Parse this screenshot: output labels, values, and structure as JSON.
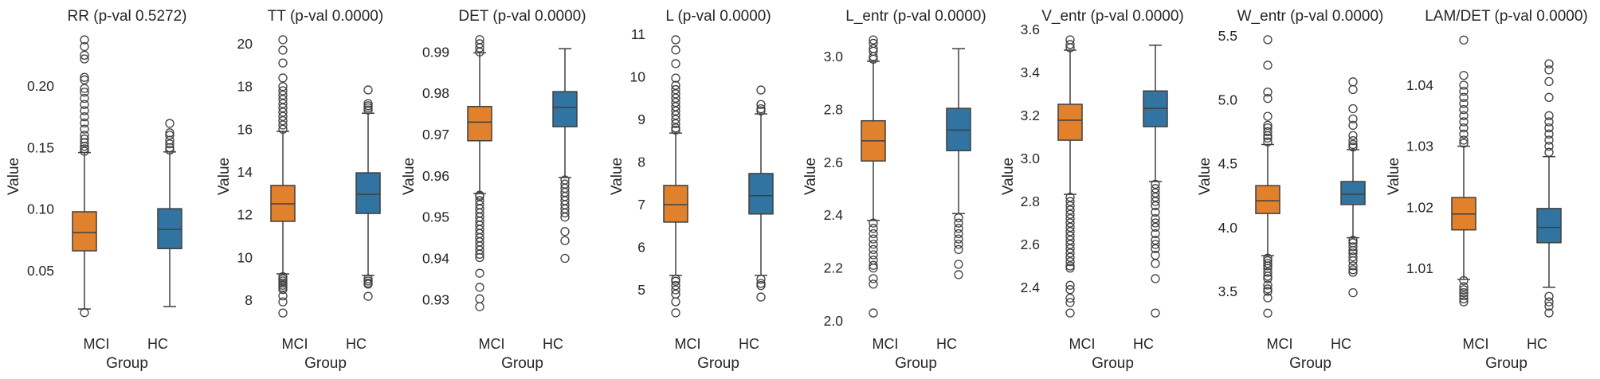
{
  "chart_data": [
    {
      "type": "box",
      "title": "RR (p-val 0.5272)",
      "xlabel": "Group",
      "ylabel": "Value",
      "categories": [
        "MCI",
        "HC"
      ],
      "ylim": [
        0.0048,
        0.2485
      ],
      "yticks": [
        0.05,
        0.1,
        0.15,
        0.2
      ],
      "ytick_labels": [
        "0.05",
        "0.10",
        "0.15",
        "0.20"
      ],
      "boxes": [
        {
          "group": "MCI",
          "whisker_low": 0.019,
          "q1": 0.0662,
          "median": 0.081,
          "q3": 0.0979,
          "whisker_high": 0.146,
          "outliers": [
            0.2375,
            0.232,
            0.225,
            0.222,
            0.207,
            0.205,
            0.198,
            0.195,
            0.19,
            0.185,
            0.18,
            0.175,
            0.17,
            0.165,
            0.16,
            0.157,
            0.154,
            0.151,
            0.149,
            0.147,
            0.016
          ]
        },
        {
          "group": "HC",
          "whisker_low": 0.021,
          "q1": 0.068,
          "median": 0.0836,
          "q3": 0.1004,
          "whisker_high": 0.1465,
          "outliers": [
            0.1696,
            0.162,
            0.16,
            0.156,
            0.153,
            0.15,
            0.148
          ]
        }
      ]
    },
    {
      "type": "box",
      "title": "TT (p-val 0.0000)",
      "xlabel": "Group",
      "ylabel": "Value",
      "categories": [
        "MCI",
        "HC"
      ],
      "ylim": [
        6.77,
        20.82
      ],
      "yticks": [
        8,
        10,
        12,
        14,
        16,
        18,
        20
      ],
      "ytick_labels": [
        "8",
        "10",
        "12",
        "14",
        "16",
        "18",
        "20"
      ],
      "boxes": [
        {
          "group": "MCI",
          "whisker_low": 9.23,
          "q1": 11.69,
          "median": 12.51,
          "q3": 13.37,
          "whisker_high": 15.9,
          "outliers": [
            20.19,
            19.7,
            19.1,
            18.4,
            18.0,
            17.8,
            17.6,
            17.4,
            17.2,
            17.0,
            16.8,
            16.6,
            16.4,
            16.2,
            16.0,
            9.1,
            9.0,
            8.9,
            8.8,
            8.7,
            8.6,
            8.5,
            8.2,
            7.92,
            7.4
          ]
        },
        {
          "group": "HC",
          "whisker_low": 9.16,
          "q1": 12.06,
          "median": 12.95,
          "q3": 13.96,
          "whisker_high": 16.75,
          "outliers": [
            17.84,
            17.2,
            17.1,
            17.0,
            16.9,
            9.0,
            8.9,
            8.8,
            8.75,
            8.18
          ]
        }
      ]
    },
    {
      "type": "box",
      "title": "DET (p-val 0.0000)",
      "xlabel": "Group",
      "ylabel": "Value",
      "categories": [
        "MCI",
        "HC"
      ],
      "ylim": [
        0.92351,
        0.99623
      ],
      "yticks": [
        0.93,
        0.94,
        0.95,
        0.96,
        0.97,
        0.98,
        0.99
      ],
      "ytick_labels": [
        "0.93",
        "0.94",
        "0.95",
        "0.96",
        "0.97",
        "0.98",
        "0.99"
      ],
      "boxes": [
        {
          "group": "MCI",
          "whisker_low": 0.9557,
          "q1": 0.9685,
          "median": 0.973,
          "q3": 0.9768,
          "whisker_high": 0.9898,
          "outliers": [
            0.993,
            0.992,
            0.991,
            0.99,
            0.9553,
            0.955,
            0.954,
            0.953,
            0.952,
            0.951,
            0.95,
            0.949,
            0.948,
            0.947,
            0.946,
            0.945,
            0.944,
            0.943,
            0.942,
            0.941,
            0.9402,
            0.9364,
            0.933,
            0.9302,
            0.9283
          ]
        },
        {
          "group": "HC",
          "whisker_low": 0.9596,
          "q1": 0.9719,
          "median": 0.9766,
          "q3": 0.9804,
          "whisker_high": 0.9908,
          "outliers": [
            0.959,
            0.958,
            0.957,
            0.956,
            0.955,
            0.954,
            0.953,
            0.952,
            0.951,
            0.95,
            0.9465,
            0.9443,
            0.94
          ]
        }
      ]
    },
    {
      "type": "box",
      "title": "L (p-val 0.0000)",
      "xlabel": "Group",
      "ylabel": "Value",
      "categories": [
        "MCI",
        "HC"
      ],
      "ylim": [
        4.14,
        11.187
      ],
      "yticks": [
        5,
        6,
        7,
        8,
        9,
        10,
        11
      ],
      "ytick_labels": [
        "5",
        "6",
        "7",
        "8",
        "9",
        "10",
        "11"
      ],
      "boxes": [
        {
          "group": "MCI",
          "whisker_low": 5.34,
          "q1": 6.59,
          "median": 7.0,
          "q3": 7.45,
          "whisker_high": 8.68,
          "outliers": [
            10.87,
            10.63,
            10.31,
            9.97,
            9.8,
            9.7,
            9.6,
            9.5,
            9.4,
            9.3,
            9.2,
            9.1,
            9.0,
            8.9,
            8.8,
            8.75,
            5.25,
            5.2,
            5.1,
            5.0,
            4.9,
            4.72,
            4.46
          ]
        },
        {
          "group": "HC",
          "whisker_low": 5.34,
          "q1": 6.78,
          "median": 7.21,
          "q3": 7.73,
          "whisker_high": 9.13,
          "outliers": [
            9.69,
            9.35,
            9.25,
            9.2,
            5.25,
            5.15,
            5.1,
            4.83
          ]
        }
      ]
    },
    {
      "type": "box",
      "title": "L_entr (p-val 0.0000)",
      "xlabel": "Group",
      "ylabel": "Value",
      "categories": [
        "MCI",
        "HC"
      ],
      "ylim": [
        1.979,
        3.1145
      ],
      "yticks": [
        2.0,
        2.2,
        2.4,
        2.6,
        2.8,
        3.0
      ],
      "ytick_labels": [
        "2.0",
        "2.2",
        "2.4",
        "2.6",
        "2.8",
        "3.0"
      ],
      "boxes": [
        {
          "group": "MCI",
          "whisker_low": 2.38,
          "q1": 2.605,
          "median": 2.681,
          "q3": 2.757,
          "whisker_high": 2.982,
          "outliers": [
            3.063,
            3.05,
            3.03,
            3.02,
            3.0,
            2.99,
            2.37,
            2.35,
            2.33,
            2.31,
            2.29,
            2.27,
            2.25,
            2.23,
            2.21,
            2.2,
            2.16,
            2.139,
            2.03
          ]
        },
        {
          "group": "HC",
          "whisker_low": 2.406,
          "q1": 2.644,
          "median": 2.722,
          "q3": 2.804,
          "whisker_high": 3.03,
          "outliers": [
            2.39,
            2.37,
            2.35,
            2.33,
            2.31,
            2.29,
            2.27,
            2.214,
            2.175
          ]
        }
      ]
    },
    {
      "type": "box",
      "title": "V_entr (p-val 0.0000)",
      "xlabel": "Group",
      "ylabel": "Value",
      "categories": [
        "MCI",
        "HC"
      ],
      "ylim": [
        2.2185,
        3.615
      ],
      "yticks": [
        2.4,
        2.6,
        2.8,
        3.0,
        3.2,
        3.4,
        3.6
      ],
      "ytick_labels": [
        "2.4",
        "2.6",
        "2.8",
        "3.0",
        "3.2",
        "3.4",
        "3.6"
      ],
      "boxes": [
        {
          "group": "MCI",
          "whisker_low": 2.833,
          "q1": 3.085,
          "median": 3.178,
          "q3": 3.252,
          "whisker_high": 3.504,
          "outliers": [
            3.552,
            3.53,
            3.515,
            2.82,
            2.8,
            2.78,
            2.76,
            2.74,
            2.72,
            2.7,
            2.68,
            2.66,
            2.64,
            2.62,
            2.6,
            2.58,
            2.56,
            2.54,
            2.52,
            2.5,
            2.49,
            2.41,
            2.39,
            2.35,
            2.33,
            2.281
          ]
        },
        {
          "group": "HC",
          "whisker_low": 2.893,
          "q1": 3.148,
          "median": 3.233,
          "q3": 3.314,
          "whisker_high": 3.527,
          "outliers": [
            2.88,
            2.86,
            2.84,
            2.82,
            2.8,
            2.78,
            2.75,
            2.72,
            2.7,
            2.68,
            2.65,
            2.62,
            2.6,
            2.58,
            2.55,
            2.511,
            2.441,
            2.281
          ]
        }
      ]
    },
    {
      "type": "box",
      "title": "W_entr (p-val 0.0000)",
      "xlabel": "Group",
      "ylabel": "Value",
      "categories": [
        "MCI",
        "HC"
      ],
      "ylim": [
        3.226,
        5.575
      ],
      "yticks": [
        3.5,
        4.0,
        4.5,
        5.0,
        5.5
      ],
      "ytick_labels": [
        "3.5",
        "4.0",
        "4.5",
        "5.0",
        "5.5"
      ],
      "boxes": [
        {
          "group": "MCI",
          "whisker_low": 3.78,
          "q1": 4.11,
          "median": 4.21,
          "q3": 4.328,
          "whisker_high": 4.65,
          "outliers": [
            5.47,
            5.27,
            5.06,
            5.01,
            4.87,
            4.8,
            4.78,
            4.75,
            4.72,
            4.7,
            4.67,
            3.76,
            3.74,
            3.72,
            3.7,
            3.68,
            3.65,
            3.62,
            3.6,
            3.55,
            3.52,
            3.5,
            3.45,
            3.33
          ]
        },
        {
          "group": "HC",
          "whisker_low": 3.92,
          "q1": 4.18,
          "median": 4.26,
          "q3": 4.36,
          "whisker_high": 4.61,
          "outliers": [
            5.14,
            5.08,
            4.93,
            4.85,
            4.8,
            4.72,
            4.68,
            4.65,
            4.63,
            3.9,
            3.88,
            3.85,
            3.82,
            3.8,
            3.77,
            3.74,
            3.7,
            3.67,
            3.65,
            3.49
          ]
        }
      ]
    },
    {
      "type": "box",
      "title": "LAM/DET (p-val 0.0000)",
      "xlabel": "Group",
      "ylabel": "Value",
      "categories": [
        "MCI",
        "HC"
      ],
      "ylim": [
        1.00048,
        1.04965
      ],
      "yticks": [
        1.01,
        1.02,
        1.03,
        1.04
      ],
      "ytick_labels": [
        "1.01",
        "1.02",
        "1.03",
        "1.04"
      ],
      "boxes": [
        {
          "group": "MCI",
          "whisker_low": 1.0082,
          "q1": 1.0163,
          "median": 1.0189,
          "q3": 1.0216,
          "whisker_high": 1.03,
          "outliers": [
            1.0474,
            1.0416,
            1.04,
            1.039,
            1.038,
            1.037,
            1.036,
            1.035,
            1.034,
            1.033,
            1.032,
            1.031,
            1.0305,
            1.008,
            1.007,
            1.0065,
            1.006,
            1.0055,
            1.005,
            1.0045
          ]
        },
        {
          "group": "HC",
          "whisker_low": 1.0069,
          "q1": 1.0142,
          "median": 1.0167,
          "q3": 1.0198,
          "whisker_high": 1.0283,
          "outliers": [
            1.0435,
            1.0425,
            1.0406,
            1.038,
            1.035,
            1.034,
            1.033,
            1.032,
            1.031,
            1.03,
            1.029,
            1.0054,
            1.0045,
            1.0038,
            1.0027
          ]
        }
      ]
    }
  ],
  "colors": {
    "MCI": "#e1812c",
    "HC": "#3274a1",
    "edge": "#3f3f3f",
    "text": "#262626"
  }
}
